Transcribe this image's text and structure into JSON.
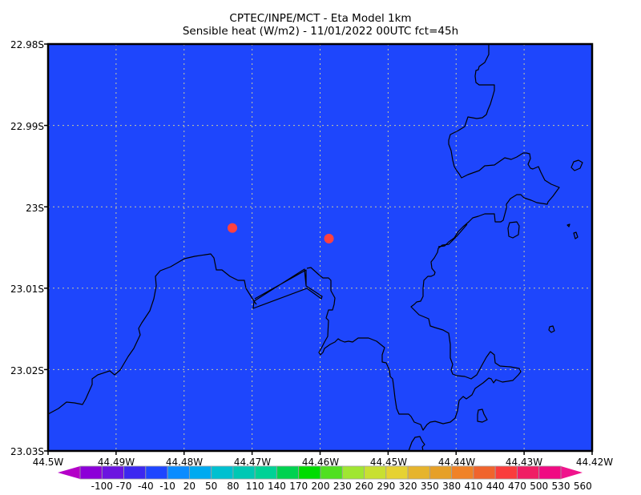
{
  "title": {
    "line1": "CPTEC/INPE/MCT -  Eta Model 1km",
    "line2": "Sensible heat (W/m2) - 11/01/2022 00UTC fct=45h"
  },
  "map": {
    "lon_range": [
      -44.5,
      -44.42
    ],
    "lat_range": [
      -23.03,
      -22.98
    ],
    "background_color": "#1e46fc",
    "grid": true,
    "y_labels": [
      "22.98S",
      "22.99S",
      "23S",
      "23.01S",
      "23.02S",
      "23.03S"
    ],
    "x_labels": [
      "44.5W",
      "44.49W",
      "44.48W",
      "44.47W",
      "44.46W",
      "44.45W",
      "44.44W",
      "44.43W",
      "44.42W"
    ],
    "markers": [
      {
        "lon": -44.4729,
        "lat": -23.0026,
        "color": "#ff4040"
      },
      {
        "lon": -44.4587,
        "lat": -23.0039,
        "color": "#ff4040"
      }
    ]
  },
  "colorbar": {
    "labels": [
      "-100",
      "-70",
      "-40",
      "-10",
      "20",
      "50",
      "80",
      "110",
      "140",
      "170",
      "200",
      "230",
      "260",
      "290",
      "320",
      "350",
      "380",
      "410",
      "440",
      "470",
      "500",
      "530",
      "560"
    ],
    "low_color": "#b400c8",
    "high_color": "#f0148c",
    "colors": [
      "#8c00d8",
      "#6c14e0",
      "#3c28f0",
      "#1e46ff",
      "#0a8cff",
      "#00aaf0",
      "#00c0d0",
      "#00c8b4",
      "#00d296",
      "#00d250",
      "#00dc00",
      "#50e020",
      "#a0e632",
      "#c8e032",
      "#e6d232",
      "#e6b42d",
      "#e6a028",
      "#f08228",
      "#f0642d",
      "#fa3c3c",
      "#f01e64",
      "#f00a82"
    ]
  }
}
